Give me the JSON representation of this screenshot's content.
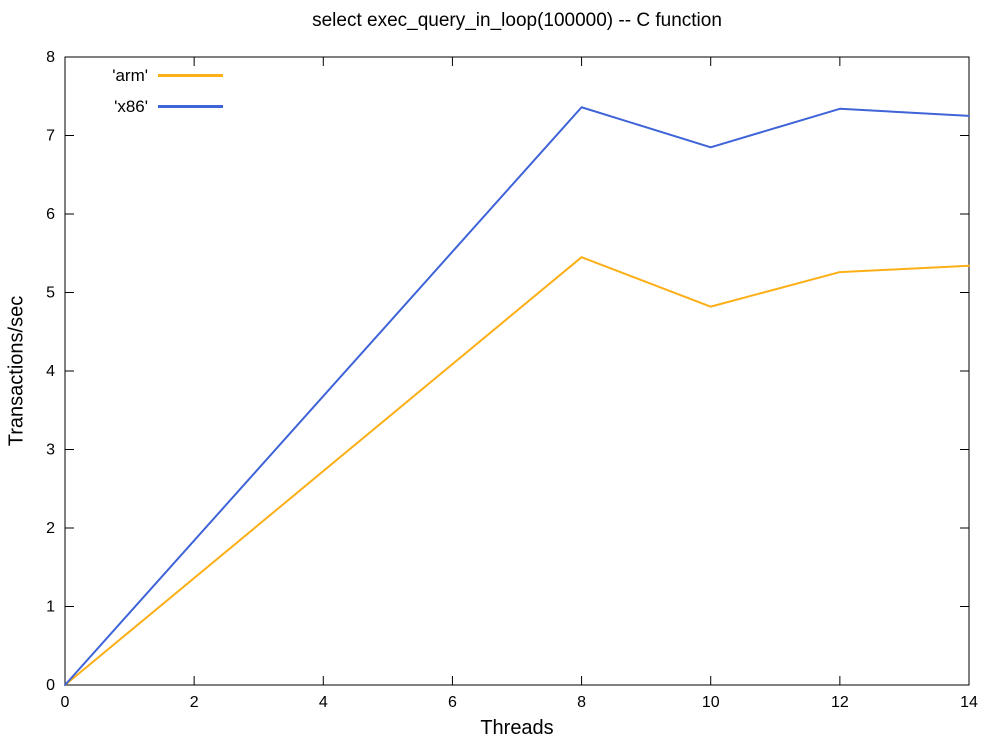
{
  "chart_data": {
    "type": "line",
    "title": "select exec_query_in_loop(100000) -- C function",
    "xlabel": "Threads",
    "ylabel": "Transactions/sec",
    "xlim": [
      0,
      14
    ],
    "ylim": [
      0,
      8
    ],
    "xticks": [
      0,
      2,
      4,
      6,
      8,
      10,
      12,
      14
    ],
    "yticks": [
      0,
      1,
      2,
      3,
      4,
      5,
      6,
      7,
      8
    ],
    "grid": false,
    "legend_position": "top-left-inside",
    "x": [
      0,
      8,
      10,
      12,
      14
    ],
    "series": [
      {
        "name": "'arm'",
        "color": "#fcaf17",
        "values": [
          0,
          5.45,
          4.82,
          5.26,
          5.34
        ]
      },
      {
        "name": "'x86'",
        "color": "#3f64d8",
        "values": [
          0,
          7.36,
          6.85,
          7.34,
          7.25
        ]
      }
    ],
    "axis_color": "#000000",
    "background_color": "#ffffff"
  }
}
